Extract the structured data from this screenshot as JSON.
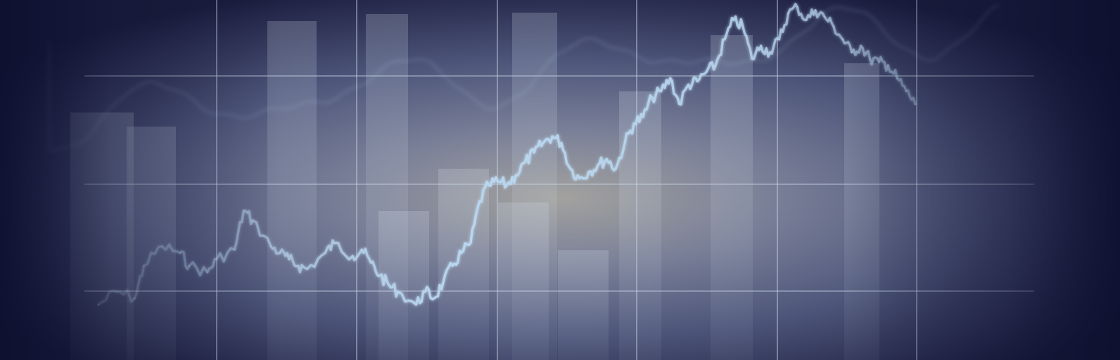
{
  "image": {
    "subject": "abstract-stock-chart-background",
    "palette": {
      "base": "#1a1c3a",
      "center_glow": "#a8a6a0",
      "mid": "#6b7591",
      "edge": "#121430",
      "grid": "#c9d6e8",
      "line": "#b9d6ee",
      "bar": "#cfdbe8"
    }
  },
  "chart_data": {
    "type": "line",
    "title": "",
    "xlabel": "",
    "ylabel": "",
    "grid": true,
    "legend": "none",
    "ylim": [
      0,
      100
    ],
    "xlim": [
      0,
      100
    ],
    "series": [
      {
        "x": [
          0,
          2,
          4,
          5,
          7,
          9,
          10,
          12,
          13,
          15,
          16,
          17,
          19,
          20,
          21,
          22,
          23,
          25,
          26,
          28,
          29,
          30,
          31,
          32,
          33,
          35,
          36,
          37,
          38,
          39,
          40,
          41,
          42,
          43,
          44,
          45,
          46,
          47,
          48,
          49,
          50,
          51,
          52,
          53,
          54,
          55,
          56,
          57,
          58,
          59,
          60,
          61,
          62,
          63,
          64,
          65,
          66,
          67,
          68,
          69,
          70,
          71,
          72,
          73,
          74,
          75,
          76,
          77,
          78,
          79,
          80,
          81,
          82,
          83,
          84,
          85,
          86,
          87,
          88,
          89,
          90
        ],
        "values": [
          8,
          12,
          10,
          20,
          26,
          24,
          20,
          18,
          22,
          25,
          37,
          34,
          26,
          24,
          22,
          20,
          19,
          24,
          27,
          23,
          25,
          21,
          17,
          14,
          12,
          8,
          12,
          10,
          15,
          20,
          24,
          27,
          40,
          45,
          46,
          45,
          48,
          52,
          55,
          58,
          60,
          58,
          50,
          47,
          49,
          51,
          53,
          50,
          58,
          64,
          66,
          72,
          74,
          78,
          70,
          76,
          77,
          80,
          82,
          90,
          96,
          94,
          84,
          88,
          86,
          90,
          98,
          100,
          96,
          99,
          97,
          94,
          90,
          86,
          88,
          84,
          83,
          82,
          78,
          74,
          70
        ]
      }
    ]
  }
}
